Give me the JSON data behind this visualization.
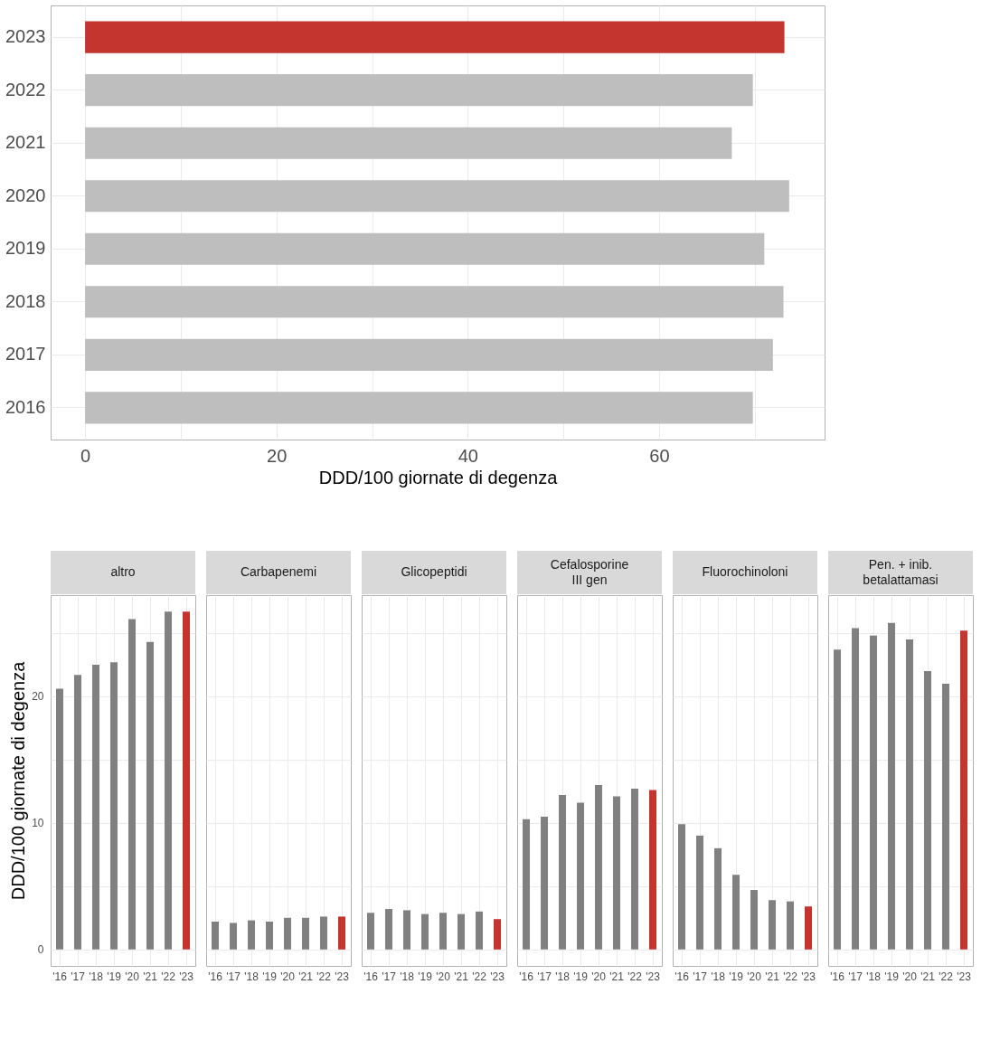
{
  "chart_data": [
    {
      "type": "bar",
      "orientation": "horizontal",
      "categories": [
        "2023",
        "2022",
        "2021",
        "2020",
        "2019",
        "2018",
        "2017",
        "2016"
      ],
      "values": [
        73.1,
        69.8,
        67.6,
        73.6,
        71.0,
        73.0,
        71.9,
        69.8
      ],
      "colors": [
        "#c4352f",
        "#bebebe",
        "#bebebe",
        "#bebebe",
        "#bebebe",
        "#bebebe",
        "#bebebe",
        "#bebebe"
      ],
      "xlim": [
        -3.6,
        77.3
      ],
      "xticks": [
        0,
        {
          "value": 10,
          "label": null
        },
        20,
        {
          "value": 30,
          "label": null
        },
        40,
        {
          "value": 50,
          "label": null
        },
        60,
        {
          "value": 70,
          "label": null
        }
      ],
      "xlabel": "DDD/100 giornate di degenza",
      "grid": true
    },
    {
      "type": "bar",
      "title": "altro",
      "categories": [
        "'16",
        "'17",
        "'18",
        "'19",
        "'20",
        "'21",
        "'22",
        "'23"
      ],
      "values": [
        20.6,
        21.7,
        22.5,
        22.7,
        26.1,
        24.3,
        26.7,
        26.7
      ],
      "colors": [
        "#808080",
        "#808080",
        "#808080",
        "#808080",
        "#808080",
        "#808080",
        "#808080",
        "#c4352f"
      ],
      "ylim": [
        -1.3,
        28
      ],
      "yticks": [
        0,
        {
          "value": 5,
          "label": null
        },
        10,
        {
          "value": 15,
          "label": null
        },
        20,
        {
          "value": 25,
          "label": null
        }
      ],
      "ylabel": "DDD/100 giornate di degenza",
      "grid": true
    },
    {
      "type": "bar",
      "title": "Carbapenemi",
      "categories": [
        "'16",
        "'17",
        "'18",
        "'19",
        "'20",
        "'21",
        "'22",
        "'23"
      ],
      "values": [
        2.2,
        2.1,
        2.3,
        2.2,
        2.5,
        2.5,
        2.6,
        2.6
      ],
      "colors": [
        "#808080",
        "#808080",
        "#808080",
        "#808080",
        "#808080",
        "#808080",
        "#808080",
        "#c4352f"
      ],
      "ylim": [
        -1.3,
        28
      ],
      "yticks": [
        0,
        {
          "value": 5,
          "label": null
        },
        10,
        {
          "value": 15,
          "label": null
        },
        20,
        {
          "value": 25,
          "label": null
        }
      ],
      "grid": true,
      "tick_labels": "x"
    },
    {
      "type": "bar",
      "title": "Glicopeptidi",
      "categories": [
        "'16",
        "'17",
        "'18",
        "'19",
        "'20",
        "'21",
        "'22",
        "'23"
      ],
      "values": [
        2.9,
        3.2,
        3.1,
        2.8,
        2.9,
        2.8,
        3.0,
        2.4
      ],
      "colors": [
        "#808080",
        "#808080",
        "#808080",
        "#808080",
        "#808080",
        "#808080",
        "#808080",
        "#c4352f"
      ],
      "ylim": [
        -1.3,
        28
      ],
      "yticks": [
        0,
        {
          "value": 5,
          "label": null
        },
        10,
        {
          "value": 15,
          "label": null
        },
        20,
        {
          "value": 25,
          "label": null
        }
      ],
      "grid": true,
      "tick_labels": "x"
    },
    {
      "type": "bar",
      "title": "Cefalosporine\nIII gen",
      "categories": [
        "'16",
        "'17",
        "'18",
        "'19",
        "'20",
        "'21",
        "'22",
        "'23"
      ],
      "values": [
        10.3,
        10.5,
        12.2,
        11.6,
        13.0,
        12.1,
        12.7,
        12.6
      ],
      "colors": [
        "#808080",
        "#808080",
        "#808080",
        "#808080",
        "#808080",
        "#808080",
        "#808080",
        "#c4352f"
      ],
      "ylim": [
        -1.3,
        28
      ],
      "yticks": [
        0,
        {
          "value": 5,
          "label": null
        },
        10,
        {
          "value": 15,
          "label": null
        },
        20,
        {
          "value": 25,
          "label": null
        }
      ],
      "grid": true,
      "tick_labels": "x"
    },
    {
      "type": "bar",
      "title": "Fluorochinoloni",
      "categories": [
        "'16",
        "'17",
        "'18",
        "'19",
        "'20",
        "'21",
        "'22",
        "'23"
      ],
      "values": [
        9.9,
        9.0,
        8.0,
        5.9,
        4.7,
        3.9,
        3.8,
        3.4
      ],
      "colors": [
        "#808080",
        "#808080",
        "#808080",
        "#808080",
        "#808080",
        "#808080",
        "#808080",
        "#c4352f"
      ],
      "ylim": [
        -1.3,
        28
      ],
      "yticks": [
        0,
        {
          "value": 5,
          "label": null
        },
        10,
        {
          "value": 15,
          "label": null
        },
        20,
        {
          "value": 25,
          "label": null
        }
      ],
      "grid": true,
      "tick_labels": "x"
    },
    {
      "type": "bar",
      "title": "Pen. +  inib.\nbetalattamasi",
      "categories": [
        "'16",
        "'17",
        "'18",
        "'19",
        "'20",
        "'21",
        "'22",
        "'23"
      ],
      "values": [
        23.7,
        25.4,
        24.8,
        25.8,
        24.5,
        22.0,
        21.0,
        25.2
      ],
      "colors": [
        "#808080",
        "#808080",
        "#808080",
        "#808080",
        "#808080",
        "#808080",
        "#808080",
        "#c4352f"
      ],
      "ylim": [
        -1.3,
        28
      ],
      "yticks": [
        0,
        {
          "value": 5,
          "label": null
        },
        10,
        {
          "value": 15,
          "label": null
        },
        20,
        {
          "value": 25,
          "label": null
        }
      ],
      "grid": true,
      "tick_labels": "x"
    }
  ]
}
